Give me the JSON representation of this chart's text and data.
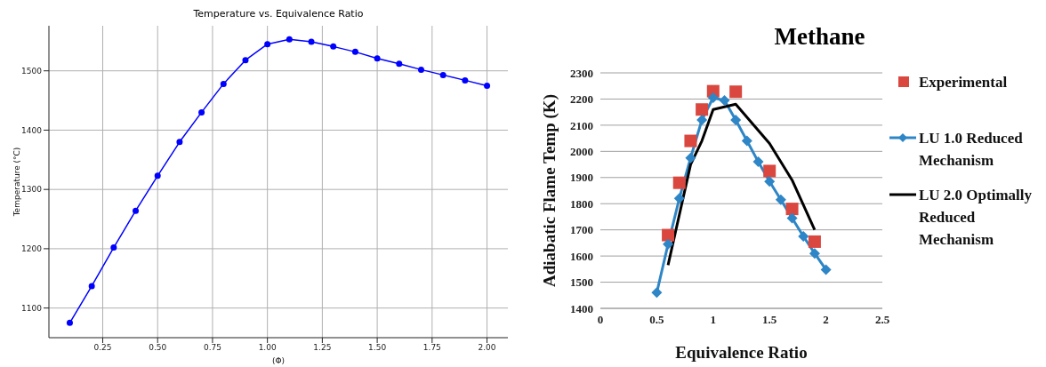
{
  "chart_data": [
    {
      "type": "line",
      "title": "Temperature vs. Equivalence Ratio",
      "xlabel": "(Φ)",
      "ylabel": "Temperature (°C)",
      "x": [
        0.1,
        0.2,
        0.3,
        0.4,
        0.5,
        0.6,
        0.7,
        0.8,
        0.9,
        1.0,
        1.1,
        1.2,
        1.3,
        1.4,
        1.5,
        1.6,
        1.7,
        1.8,
        1.9,
        2.0
      ],
      "series": [
        {
          "color": "#0000ff",
          "values": [
            1075,
            1137,
            1202,
            1264,
            1323,
            1380,
            1430,
            1478,
            1518,
            1545,
            1553,
            1549,
            1541,
            1532,
            1521,
            1512,
            1502,
            1493,
            1484,
            1475
          ]
        }
      ],
      "xlim": [
        0.005,
        2.095
      ],
      "xticks": [
        0.25,
        {
          "value": 0.5,
          "label": "0.50"
        },
        0.75,
        {
          "value": 1.0,
          "label": "1.00"
        },
        1.25,
        {
          "value": 1.5,
          "label": "1.50"
        },
        1.75,
        {
          "value": 2.0,
          "label": "2.00"
        }
      ],
      "ylim": [
        1050,
        1576
      ],
      "yticks": [
        1100,
        1200,
        1300,
        1400,
        1500
      ],
      "grid": true,
      "marker": "circle",
      "line_style": "solid"
    },
    {
      "type": "line",
      "title": "Methane",
      "xlabel": "Equivalence Ratio",
      "ylabel": "Adiabatic Flame Temp (K)",
      "series": [
        {
          "name": "Experimental",
          "type": "scatter",
          "color": "#d9473f",
          "marker": "square",
          "x": [
            0.6,
            0.7,
            0.8,
            0.9,
            1.0,
            1.2,
            1.5,
            1.7,
            1.9
          ],
          "values": [
            1680,
            1880,
            2040,
            2160,
            2230,
            2228,
            1925,
            1780,
            1655
          ]
        },
        {
          "name": "LU 1.0 Reduced Mechanism",
          "color": "#2e86c6",
          "marker": "diamond",
          "x": [
            0.5,
            0.6,
            0.7,
            0.8,
            0.9,
            1.0,
            1.1,
            1.2,
            1.3,
            1.4,
            1.5,
            1.6,
            1.7,
            1.8,
            1.9,
            2.0
          ],
          "values": [
            1460,
            1645,
            1820,
            1975,
            2120,
            2205,
            2195,
            2120,
            2040,
            1960,
            1885,
            1815,
            1745,
            1675,
            1610,
            1548
          ]
        },
        {
          "name": "LU 2.0 Optimally Reduced Mechanism",
          "color": "#000000",
          "marker": "none",
          "x": [
            0.6,
            0.8,
            0.9,
            1.0,
            1.2,
            1.5,
            1.7,
            1.9
          ],
          "values": [
            1565,
            1950,
            2040,
            2160,
            2180,
            2030,
            1890,
            1700
          ]
        }
      ],
      "xlim": [
        0,
        2.5
      ],
      "xticks": [
        0,
        0.5,
        1,
        1.5,
        2,
        2.5
      ],
      "ylim": [
        1400,
        2300
      ],
      "yticks": [
        1400,
        1500,
        1600,
        1700,
        1800,
        1900,
        2000,
        2100,
        2200,
        2300
      ],
      "grid": "y",
      "legend": "right",
      "line_style": "solid"
    }
  ]
}
